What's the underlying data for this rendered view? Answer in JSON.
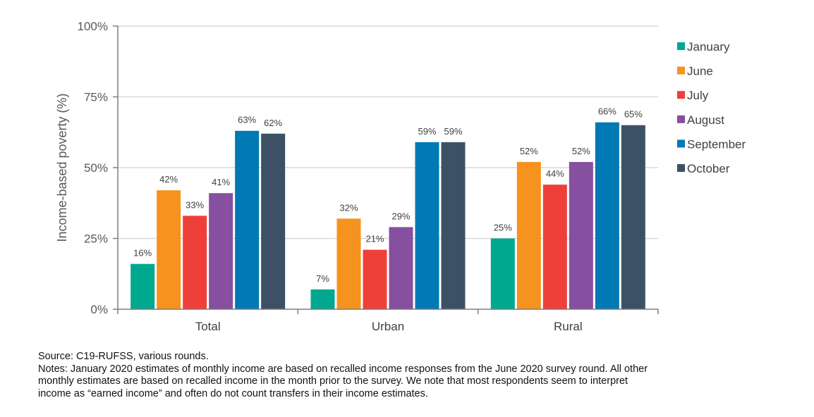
{
  "chart_data": {
    "type": "bar",
    "title": "",
    "xlabel": "",
    "ylabel": "Income-based poverty (%)",
    "ylim": [
      0,
      100
    ],
    "yticks": [
      0,
      25,
      50,
      75,
      100
    ],
    "ytick_labels": [
      "0%",
      "25%",
      "50%",
      "75%",
      "100%"
    ],
    "grid": true,
    "legend_position": "right",
    "categories": [
      "Total",
      "Urban",
      "Rural"
    ],
    "series": [
      {
        "name": "January",
        "color": "#00A88F",
        "values": [
          16,
          7,
          25
        ],
        "labels": [
          "16%",
          "7%",
          "25%"
        ]
      },
      {
        "name": "June",
        "color": "#F6921E",
        "values": [
          42,
          32,
          52
        ],
        "labels": [
          "42%",
          "32%",
          "52%"
        ]
      },
      {
        "name": "July",
        "color": "#EE4039",
        "values": [
          33,
          21,
          44
        ],
        "labels": [
          "33%",
          "21%",
          "44%"
        ]
      },
      {
        "name": "August",
        "color": "#874F9F",
        "values": [
          41,
          29,
          52
        ],
        "labels": [
          "41%",
          "29%",
          "52%"
        ]
      },
      {
        "name": "September",
        "color": "#0079B5",
        "values": [
          63,
          59,
          66
        ],
        "labels": [
          "63%",
          "59%",
          "66%"
        ]
      },
      {
        "name": "October",
        "color": "#3C5166",
        "values": [
          62,
          59,
          65
        ],
        "labels": [
          "62%",
          "59%",
          "65%"
        ]
      }
    ]
  },
  "notes": {
    "source": "Source: C19-RUFSS, various rounds.",
    "lines": [
      "Notes: January 2020 estimates of monthly income are based on recalled income responses from the June 2020 survey round. All other",
      "monthly estimates are based on recalled income in the month prior to the survey. We note that most respondents seem to interpret",
      "income as “earned income” and often do not count transfers in their income estimates."
    ]
  }
}
